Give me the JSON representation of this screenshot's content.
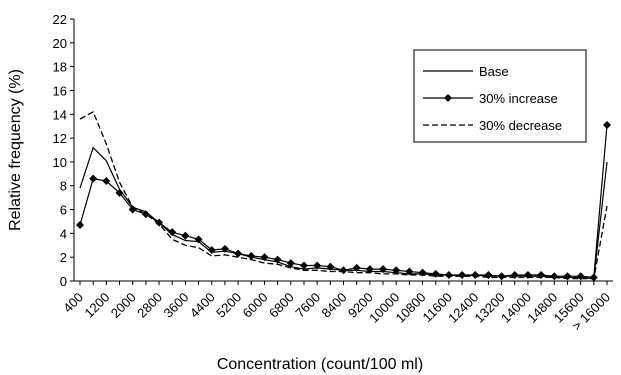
{
  "chart_data": {
    "type": "line",
    "xlabel": "Concentration (count/100 ml)",
    "ylabel": "Relative frequency (%)",
    "ylim": [
      0,
      22
    ],
    "yticks": [
      "0",
      "2",
      "4",
      "6",
      "8",
      "10",
      "12",
      "14",
      "16",
      "18",
      "20",
      "22"
    ],
    "x": [
      "400",
      "800",
      "1200",
      "1600",
      "2000",
      "2400",
      "2800",
      "3200",
      "3600",
      "4000",
      "4400",
      "4800",
      "5200",
      "5600",
      "6000",
      "6400",
      "6800",
      "7200",
      "7600",
      "8000",
      "8400",
      "8800",
      "9200",
      "9600",
      "10000",
      "10400",
      "10800",
      "11200",
      "11600",
      "12000",
      "12400",
      "12800",
      "13200",
      "13600",
      "14000",
      "14400",
      "14800",
      "15200",
      "15600",
      "16000",
      "> 16000"
    ],
    "xticklabels": [
      "400",
      "1200",
      "2000",
      "2800",
      "3600",
      "4400",
      "5200",
      "6000",
      "6800",
      "7600",
      "8400",
      "9200",
      "10000",
      "10800",
      "11600",
      "12400",
      "13200",
      "14000",
      "14800",
      "15600",
      "> 16000"
    ],
    "legend_position": "top-right",
    "grid": false,
    "series": [
      {
        "name": "Base",
        "style": "solid",
        "marker": "none",
        "values": [
          7.8,
          11.2,
          10.1,
          7.7,
          6.2,
          5.8,
          4.9,
          3.9,
          3.4,
          3.3,
          2.4,
          2.5,
          2.3,
          2.0,
          1.8,
          1.6,
          1.2,
          1.0,
          1.1,
          1.0,
          0.9,
          0.9,
          0.8,
          0.8,
          0.7,
          0.6,
          0.6,
          0.5,
          0.5,
          0.4,
          0.5,
          0.4,
          0.4,
          0.4,
          0.4,
          0.4,
          0.3,
          0.3,
          0.3,
          0.2,
          10.0
        ]
      },
      {
        "name": "30% increase",
        "style": "solid",
        "marker": "diamond",
        "values": [
          4.7,
          8.6,
          8.4,
          7.4,
          6.0,
          5.6,
          4.9,
          4.1,
          3.8,
          3.5,
          2.6,
          2.7,
          2.3,
          2.1,
          2.0,
          1.8,
          1.5,
          1.3,
          1.3,
          1.2,
          0.9,
          1.1,
          1.0,
          1.0,
          0.9,
          0.8,
          0.7,
          0.6,
          0.5,
          0.5,
          0.5,
          0.5,
          0.4,
          0.5,
          0.5,
          0.5,
          0.4,
          0.4,
          0.4,
          0.3,
          13.1
        ]
      },
      {
        "name": "30% decrease",
        "style": "dashed",
        "marker": "none",
        "values": [
          13.6,
          14.2,
          11.5,
          8.3,
          6.2,
          5.6,
          4.8,
          3.5,
          3.0,
          2.8,
          2.1,
          2.2,
          2.0,
          1.8,
          1.5,
          1.4,
          1.1,
          0.9,
          0.9,
          0.8,
          0.8,
          0.7,
          0.7,
          0.6,
          0.6,
          0.5,
          0.5,
          0.4,
          0.4,
          0.4,
          0.4,
          0.3,
          0.3,
          0.3,
          0.3,
          0.3,
          0.3,
          0.2,
          0.2,
          0.2,
          6.3
        ]
      }
    ]
  }
}
